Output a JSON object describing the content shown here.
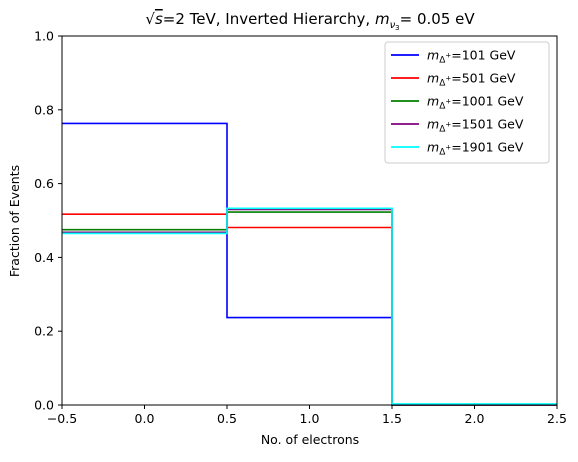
{
  "chart_data": {
    "type": "line",
    "step": true,
    "title": {
      "main_prefix": "√",
      "main_s": "s",
      "main_rest": "=2 TeV, Inverted Hierarchy, ",
      "m": "m",
      "nu_sub": "ν",
      "nu_subsub": "3",
      "value": "= 0.05 eV"
    },
    "xlabel": "No. of electrons",
    "ylabel": "Fraction of Events",
    "xlim": [
      -0.5,
      2.5
    ],
    "ylim": [
      0.0,
      1.0
    ],
    "xticks": [
      -0.5,
      0.0,
      0.5,
      1.0,
      1.5,
      2.0,
      2.5
    ],
    "xtick_labels": [
      "−0.5",
      "0.0",
      "0.5",
      "1.0",
      "1.5",
      "2.0",
      "2.5"
    ],
    "yticks": [
      0.0,
      0.2,
      0.4,
      0.6,
      0.8,
      1.0
    ],
    "ytick_labels": [
      "0.0",
      "0.2",
      "0.4",
      "0.6",
      "0.8",
      "1.0"
    ],
    "bin_edges": [
      -0.5,
      0.5,
      1.5,
      2.5
    ],
    "grid": false,
    "legend_position": "top-right",
    "legend_m": "m",
    "legend_sub": "Δ",
    "legend_subsup": "+",
    "series": [
      {
        "name": "=101 GeV",
        "color": "#0000ff",
        "values": [
          0.763,
          0.237,
          0.0
        ]
      },
      {
        "name": "=501 GeV",
        "color": "#ff0000",
        "values": [
          0.517,
          0.481,
          0.0
        ]
      },
      {
        "name": "=1001 GeV",
        "color": "#008000",
        "values": [
          0.475,
          0.523,
          0.0
        ]
      },
      {
        "name": "=1501 GeV",
        "color": "#800080",
        "values": [
          0.468,
          0.53,
          0.0
        ]
      },
      {
        "name": "=1901 GeV",
        "color": "#00ffff",
        "values": [
          0.465,
          0.533,
          0.003
        ]
      }
    ]
  }
}
